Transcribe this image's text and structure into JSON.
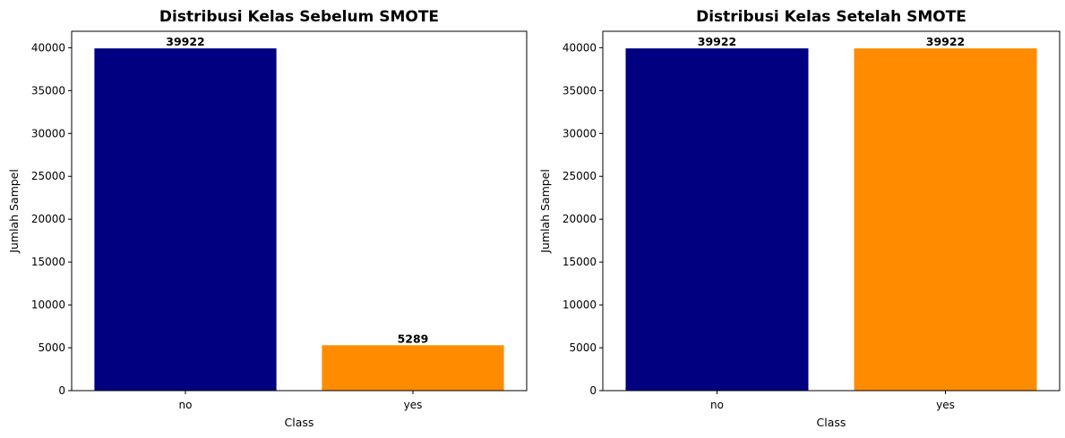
{
  "chart_data": [
    {
      "type": "bar",
      "title": "Distribusi Kelas Sebelum SMOTE",
      "xlabel": "Class",
      "ylabel": "Jumlah Sampel",
      "categories": [
        "no",
        "yes"
      ],
      "values": [
        39922,
        5289
      ],
      "data_labels": [
        "39922",
        "5289"
      ],
      "bar_colors": [
        "#000080",
        "#ff8c00"
      ],
      "ylim": [
        0,
        41918
      ],
      "yticks": [
        0,
        5000,
        10000,
        15000,
        20000,
        25000,
        30000,
        35000,
        40000
      ],
      "grid": false,
      "legend": "none"
    },
    {
      "type": "bar",
      "title": "Distribusi Kelas Setelah SMOTE",
      "xlabel": "Class",
      "ylabel": "Jumlah Sampel",
      "categories": [
        "no",
        "yes"
      ],
      "values": [
        39922,
        39922
      ],
      "data_labels": [
        "39922",
        "39922"
      ],
      "bar_colors": [
        "#000080",
        "#ff8c00"
      ],
      "ylim": [
        0,
        41918
      ],
      "yticks": [
        0,
        5000,
        10000,
        15000,
        20000,
        25000,
        30000,
        35000,
        40000
      ],
      "grid": false,
      "legend": "none"
    }
  ]
}
